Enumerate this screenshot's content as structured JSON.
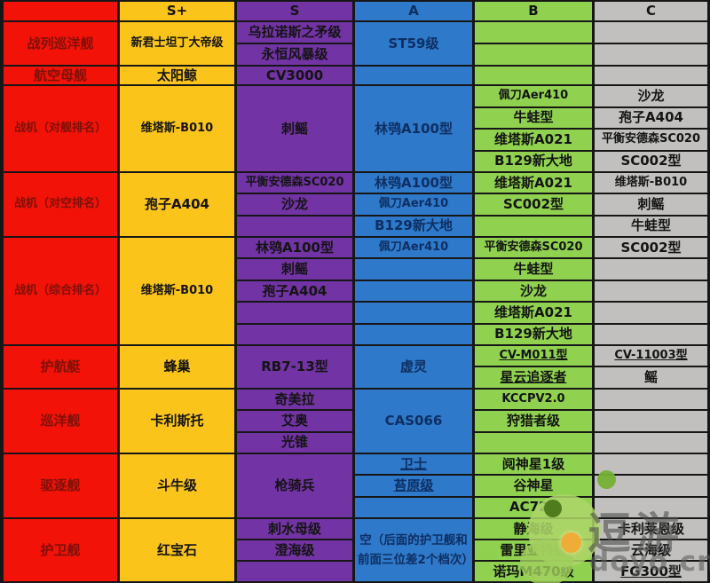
{
  "colors": {
    "red": "#f21208",
    "yellow": "#fbc41a",
    "purple": "#7233a4",
    "blue": "#2e79c9",
    "green": "#90d24f",
    "gray": "#c1c0be",
    "border": "#161616"
  },
  "watermark": {
    "brand": "逗游",
    "domain": "doyo.cn"
  },
  "chart_data": {
    "type": "table",
    "title": "",
    "columns": [
      "",
      "S+",
      "S",
      "A",
      "B",
      "C"
    ],
    "rows": [
      {
        "category": "战列巡洋舰",
        "S+": [
          "新君士坦丁大帝级"
        ],
        "S": [
          "乌拉诺斯之矛级",
          "永恒风暴级"
        ],
        "A": [
          "ST59级"
        ],
        "B": [],
        "C": []
      },
      {
        "category": "航空母舰",
        "S+": [
          "太阳鲸"
        ],
        "S": [
          "CV3000"
        ],
        "A": [],
        "B": [],
        "C": []
      },
      {
        "category": "战机（对舰排名）",
        "S+": [
          "维塔斯-B010"
        ],
        "S": [
          "刺鳐"
        ],
        "A": [
          "林鸮A100型"
        ],
        "B": [
          "佩刀Aer410",
          "牛蛙型",
          "维塔斯A021",
          "B129新大地"
        ],
        "C": [
          "沙龙",
          "孢子A404",
          "平衡安德森SC020",
          "SC002型"
        ]
      },
      {
        "category": "战机（对空排名）",
        "S+": [
          "孢子A404"
        ],
        "S": [
          "平衡安德森SC020",
          "沙龙"
        ],
        "A": [
          "林鸮A100型",
          "佩刀Aer410",
          "B129新大地"
        ],
        "B": [
          "维塔斯A021",
          "SC002型"
        ],
        "C": [
          "维塔斯-B010",
          "刺鳐",
          "牛蛙型"
        ]
      },
      {
        "category": "战机（综合排名）",
        "S+": [
          "维塔斯-B010"
        ],
        "S": [
          "林鸮A100型",
          "刺鳐",
          "孢子A404"
        ],
        "A": [
          "佩刀Aer410"
        ],
        "B": [
          "平衡安德森SC020",
          "牛蛙型",
          "沙龙",
          "维塔斯A021",
          "B129新大地"
        ],
        "C": [
          "SC002型"
        ]
      },
      {
        "category": "护航艇",
        "S+": [
          "蜂巢"
        ],
        "S": [
          "RB7-13型"
        ],
        "A": [
          "虚灵"
        ],
        "B": [
          "CV-M011型",
          "星云追逐者"
        ],
        "C": [
          "CV-11003型",
          "鳐"
        ]
      },
      {
        "category": "巡洋舰",
        "S+": [
          "卡利斯托"
        ],
        "S": [
          "奇美拉",
          "艾奥",
          "光锥"
        ],
        "A": [
          "CAS066"
        ],
        "B": [
          "KCCPV2.0",
          "狩猎者级"
        ],
        "C": []
      },
      {
        "category": "驱逐舰",
        "S+": [
          "斗牛级"
        ],
        "S": [
          "枪骑兵"
        ],
        "A": [
          "卫士",
          "苔原级"
        ],
        "B": [
          "阋神星1级",
          "谷神星",
          "AC721"
        ],
        "C": []
      },
      {
        "category": "护卫舰",
        "S+": [
          "红宝石"
        ],
        "S": [
          "刺水母级",
          "澄海级"
        ],
        "A": [
          "空（后面的护卫舰和前面三位差2个档次）"
        ],
        "B": [
          "静海级",
          "雷里亚特级",
          "诺玛M470级"
        ],
        "C": [
          "卡利莱恩级",
          "云海级",
          "FG300型"
        ]
      }
    ]
  },
  "table": {
    "cells": [
      {
        "col": 0,
        "row": 0,
        "span": 1,
        "text": "",
        "tier": "red",
        "name": "corner-header-cell"
      },
      {
        "col": 0,
        "row": 1,
        "span": 2,
        "text": "战列巡洋舰",
        "tier": "red",
        "name": "row-header-battlecruiser"
      },
      {
        "col": 0,
        "row": 3,
        "span": 1,
        "text": "航空母舰",
        "tier": "red",
        "name": "row-header-carrier"
      },
      {
        "col": 0,
        "row": 4,
        "span": 4,
        "text": "战机（对舰排名）",
        "tier": "red",
        "name": "row-header-fighter-antiship"
      },
      {
        "col": 0,
        "row": 8,
        "span": 3,
        "text": "战机（对空排名）",
        "tier": "red",
        "name": "row-header-fighter-antiair"
      },
      {
        "col": 0,
        "row": 11,
        "span": 5,
        "text": "战机（综合排名）",
        "tier": "red",
        "name": "row-header-fighter-overall"
      },
      {
        "col": 0,
        "row": 16,
        "span": 2,
        "text": "护航艇",
        "tier": "red",
        "name": "row-header-corvette"
      },
      {
        "col": 0,
        "row": 18,
        "span": 3,
        "text": "巡洋舰",
        "tier": "red",
        "name": "row-header-cruiser"
      },
      {
        "col": 0,
        "row": 21,
        "span": 3,
        "text": "驱逐舰",
        "tier": "red",
        "name": "row-header-destroyer"
      },
      {
        "col": 0,
        "row": 24,
        "span": 3,
        "text": "护卫舰",
        "tier": "red",
        "name": "row-header-frigate"
      },
      {
        "col": 1,
        "row": 0,
        "span": 1,
        "text": "S+",
        "tier": "yellow",
        "name": "column-header-s-plus"
      },
      {
        "col": 1,
        "row": 1,
        "span": 2,
        "text": "新君士坦丁大帝级",
        "tier": "yellow"
      },
      {
        "col": 1,
        "row": 3,
        "span": 1,
        "text": "太阳鲸",
        "tier": "yellow"
      },
      {
        "col": 1,
        "row": 4,
        "span": 4,
        "text": "维塔斯-B010",
        "tier": "yellow"
      },
      {
        "col": 1,
        "row": 8,
        "span": 3,
        "text": "孢子A404",
        "tier": "yellow"
      },
      {
        "col": 1,
        "row": 11,
        "span": 5,
        "text": "维塔斯-B010",
        "tier": "yellow"
      },
      {
        "col": 1,
        "row": 16,
        "span": 2,
        "text": "蜂巢",
        "tier": "yellow"
      },
      {
        "col": 1,
        "row": 18,
        "span": 3,
        "text": "卡利斯托",
        "tier": "yellow"
      },
      {
        "col": 1,
        "row": 21,
        "span": 3,
        "text": "斗牛级",
        "tier": "yellow"
      },
      {
        "col": 1,
        "row": 24,
        "span": 3,
        "text": "红宝石",
        "tier": "yellow"
      },
      {
        "col": 2,
        "row": 0,
        "span": 1,
        "text": "S",
        "tier": "purple",
        "name": "column-header-s"
      },
      {
        "col": 2,
        "row": 1,
        "span": 1,
        "text": "乌拉诺斯之矛级",
        "tier": "purple"
      },
      {
        "col": 2,
        "row": 2,
        "span": 1,
        "text": "永恒风暴级",
        "tier": "purple"
      },
      {
        "col": 2,
        "row": 3,
        "span": 1,
        "text": "CV3000",
        "tier": "purple"
      },
      {
        "col": 2,
        "row": 4,
        "span": 4,
        "text": "刺鳐",
        "tier": "purple"
      },
      {
        "col": 2,
        "row": 8,
        "span": 1,
        "text": "平衡安德森SC020",
        "tier": "purple"
      },
      {
        "col": 2,
        "row": 9,
        "span": 1,
        "text": "沙龙",
        "tier": "purple"
      },
      {
        "col": 2,
        "row": 10,
        "span": 1,
        "text": "",
        "tier": "purple"
      },
      {
        "col": 2,
        "row": 11,
        "span": 1,
        "text": "林鸮A100型",
        "tier": "purple"
      },
      {
        "col": 2,
        "row": 12,
        "span": 1,
        "text": "刺鳐",
        "tier": "purple"
      },
      {
        "col": 2,
        "row": 13,
        "span": 1,
        "text": "孢子A404",
        "tier": "purple"
      },
      {
        "col": 2,
        "row": 14,
        "span": 1,
        "text": "",
        "tier": "purple"
      },
      {
        "col": 2,
        "row": 15,
        "span": 1,
        "text": "",
        "tier": "purple"
      },
      {
        "col": 2,
        "row": 16,
        "span": 2,
        "text": "RB7-13型",
        "tier": "purple"
      },
      {
        "col": 2,
        "row": 18,
        "span": 1,
        "text": "奇美拉",
        "tier": "purple"
      },
      {
        "col": 2,
        "row": 19,
        "span": 1,
        "text": "艾奥",
        "tier": "purple"
      },
      {
        "col": 2,
        "row": 20,
        "span": 1,
        "text": "光锥",
        "tier": "purple"
      },
      {
        "col": 2,
        "row": 21,
        "span": 3,
        "text": "枪骑兵",
        "tier": "purple"
      },
      {
        "col": 2,
        "row": 24,
        "span": 1,
        "text": "刺水母级",
        "tier": "purple"
      },
      {
        "col": 2,
        "row": 25,
        "span": 1,
        "text": "澄海级",
        "tier": "purple"
      },
      {
        "col": 2,
        "row": 26,
        "span": 1,
        "text": "",
        "tier": "purple"
      },
      {
        "col": 3,
        "row": 0,
        "span": 1,
        "text": "A",
        "tier": "blue",
        "name": "column-header-a"
      },
      {
        "col": 3,
        "row": 1,
        "span": 2,
        "text": "ST59级",
        "tier": "blue"
      },
      {
        "col": 3,
        "row": 3,
        "span": 1,
        "text": "",
        "tier": "blue"
      },
      {
        "col": 3,
        "row": 4,
        "span": 4,
        "text": "林鸮A100型",
        "tier": "blue"
      },
      {
        "col": 3,
        "row": 8,
        "span": 1,
        "text": "林鸮A100型",
        "tier": "blue"
      },
      {
        "col": 3,
        "row": 9,
        "span": 1,
        "text": "佩刀Aer410",
        "tier": "blue"
      },
      {
        "col": 3,
        "row": 10,
        "span": 1,
        "text": "B129新大地",
        "tier": "blue"
      },
      {
        "col": 3,
        "row": 11,
        "span": 1,
        "text": "佩刀Aer410",
        "tier": "blue"
      },
      {
        "col": 3,
        "row": 12,
        "span": 1,
        "text": "",
        "tier": "blue"
      },
      {
        "col": 3,
        "row": 13,
        "span": 1,
        "text": "",
        "tier": "blue"
      },
      {
        "col": 3,
        "row": 14,
        "span": 1,
        "text": "",
        "tier": "blue"
      },
      {
        "col": 3,
        "row": 15,
        "span": 1,
        "text": "",
        "tier": "blue"
      },
      {
        "col": 3,
        "row": 16,
        "span": 2,
        "text": "虚灵",
        "tier": "blue"
      },
      {
        "col": 3,
        "row": 18,
        "span": 3,
        "text": "CAS066",
        "tier": "blue"
      },
      {
        "col": 3,
        "row": 21,
        "span": 1,
        "text": "卫士",
        "tier": "blue",
        "u": true
      },
      {
        "col": 3,
        "row": 22,
        "span": 1,
        "text": "苔原级",
        "tier": "blue",
        "u": true
      },
      {
        "col": 3,
        "row": 23,
        "span": 1,
        "text": "",
        "tier": "blue"
      },
      {
        "col": 3,
        "row": 24,
        "span": 3,
        "text": "空（后面的护卫舰和前面三位差2个档次）",
        "tier": "blue"
      },
      {
        "col": 4,
        "row": 0,
        "span": 1,
        "text": "B",
        "tier": "green",
        "name": "column-header-b"
      },
      {
        "col": 4,
        "row": 1,
        "span": 1,
        "text": "",
        "tier": "green"
      },
      {
        "col": 4,
        "row": 2,
        "span": 1,
        "text": "",
        "tier": "green"
      },
      {
        "col": 4,
        "row": 3,
        "span": 1,
        "text": "",
        "tier": "green"
      },
      {
        "col": 4,
        "row": 4,
        "span": 1,
        "text": "佩刀Aer410",
        "tier": "green"
      },
      {
        "col": 4,
        "row": 5,
        "span": 1,
        "text": "牛蛙型",
        "tier": "green"
      },
      {
        "col": 4,
        "row": 6,
        "span": 1,
        "text": "维塔斯A021",
        "tier": "green"
      },
      {
        "col": 4,
        "row": 7,
        "span": 1,
        "text": "B129新大地",
        "tier": "green"
      },
      {
        "col": 4,
        "row": 8,
        "span": 1,
        "text": "维塔斯A021",
        "tier": "green"
      },
      {
        "col": 4,
        "row": 9,
        "span": 1,
        "text": "SC002型",
        "tier": "green"
      },
      {
        "col": 4,
        "row": 10,
        "span": 1,
        "text": "",
        "tier": "green"
      },
      {
        "col": 4,
        "row": 11,
        "span": 1,
        "text": "平衡安德森SC020",
        "tier": "green"
      },
      {
        "col": 4,
        "row": 12,
        "span": 1,
        "text": "牛蛙型",
        "tier": "green"
      },
      {
        "col": 4,
        "row": 13,
        "span": 1,
        "text": "沙龙",
        "tier": "green"
      },
      {
        "col": 4,
        "row": 14,
        "span": 1,
        "text": "维塔斯A021",
        "tier": "green"
      },
      {
        "col": 4,
        "row": 15,
        "span": 1,
        "text": "B129新大地",
        "tier": "green"
      },
      {
        "col": 4,
        "row": 16,
        "span": 1,
        "text": "CV-M011型",
        "tier": "green",
        "u": true
      },
      {
        "col": 4,
        "row": 17,
        "span": 1,
        "text": "星云追逐者",
        "tier": "green",
        "u": true
      },
      {
        "col": 4,
        "row": 18,
        "span": 1,
        "text": "KCCPV2.0",
        "tier": "green"
      },
      {
        "col": 4,
        "row": 19,
        "span": 1,
        "text": "狩猎者级",
        "tier": "green"
      },
      {
        "col": 4,
        "row": 20,
        "span": 1,
        "text": "",
        "tier": "green"
      },
      {
        "col": 4,
        "row": 21,
        "span": 1,
        "text": "阋神星1级",
        "tier": "green"
      },
      {
        "col": 4,
        "row": 22,
        "span": 1,
        "text": "谷神星",
        "tier": "green"
      },
      {
        "col": 4,
        "row": 23,
        "span": 1,
        "text": "AC721",
        "tier": "green"
      },
      {
        "col": 4,
        "row": 24,
        "span": 1,
        "text": "静海级",
        "tier": "green"
      },
      {
        "col": 4,
        "row": 25,
        "span": 1,
        "text": "雷里亚特级",
        "tier": "green"
      },
      {
        "col": 4,
        "row": 26,
        "span": 1,
        "text": "诺玛M470级",
        "tier": "green"
      },
      {
        "col": 5,
        "row": 0,
        "span": 1,
        "text": "C",
        "tier": "gray",
        "name": "column-header-c"
      },
      {
        "col": 5,
        "row": 1,
        "span": 1,
        "text": "",
        "tier": "gray"
      },
      {
        "col": 5,
        "row": 2,
        "span": 1,
        "text": "",
        "tier": "gray"
      },
      {
        "col": 5,
        "row": 3,
        "span": 1,
        "text": "",
        "tier": "gray"
      },
      {
        "col": 5,
        "row": 4,
        "span": 1,
        "text": "沙龙",
        "tier": "gray"
      },
      {
        "col": 5,
        "row": 5,
        "span": 1,
        "text": "孢子A404",
        "tier": "gray"
      },
      {
        "col": 5,
        "row": 6,
        "span": 1,
        "text": "平衡安德森SC020",
        "tier": "gray"
      },
      {
        "col": 5,
        "row": 7,
        "span": 1,
        "text": "SC002型",
        "tier": "gray"
      },
      {
        "col": 5,
        "row": 8,
        "span": 1,
        "text": "维塔斯-B010",
        "tier": "gray"
      },
      {
        "col": 5,
        "row": 9,
        "span": 1,
        "text": "刺鳐",
        "tier": "gray"
      },
      {
        "col": 5,
        "row": 10,
        "span": 1,
        "text": "牛蛙型",
        "tier": "gray"
      },
      {
        "col": 5,
        "row": 11,
        "span": 1,
        "text": "SC002型",
        "tier": "gray"
      },
      {
        "col": 5,
        "row": 12,
        "span": 1,
        "text": "",
        "tier": "gray"
      },
      {
        "col": 5,
        "row": 13,
        "span": 1,
        "text": "",
        "tier": "gray"
      },
      {
        "col": 5,
        "row": 14,
        "span": 1,
        "text": "",
        "tier": "gray"
      },
      {
        "col": 5,
        "row": 15,
        "span": 1,
        "text": "",
        "tier": "gray"
      },
      {
        "col": 5,
        "row": 16,
        "span": 1,
        "text": "CV-11003型",
        "tier": "gray",
        "u": true
      },
      {
        "col": 5,
        "row": 17,
        "span": 1,
        "text": "鳐",
        "tier": "gray"
      },
      {
        "col": 5,
        "row": 18,
        "span": 1,
        "text": "",
        "tier": "gray"
      },
      {
        "col": 5,
        "row": 19,
        "span": 1,
        "text": "",
        "tier": "gray"
      },
      {
        "col": 5,
        "row": 20,
        "span": 1,
        "text": "",
        "tier": "gray"
      },
      {
        "col": 5,
        "row": 21,
        "span": 1,
        "text": "",
        "tier": "gray"
      },
      {
        "col": 5,
        "row": 22,
        "span": 1,
        "text": "",
        "tier": "gray"
      },
      {
        "col": 5,
        "row": 23,
        "span": 1,
        "text": "",
        "tier": "gray"
      },
      {
        "col": 5,
        "row": 24,
        "span": 1,
        "text": "卡利莱恩级",
        "tier": "gray"
      },
      {
        "col": 5,
        "row": 25,
        "span": 1,
        "text": "云海级",
        "tier": "gray"
      },
      {
        "col": 5,
        "row": 26,
        "span": 1,
        "text": "FG300型",
        "tier": "gray",
        "u": true
      }
    ]
  }
}
